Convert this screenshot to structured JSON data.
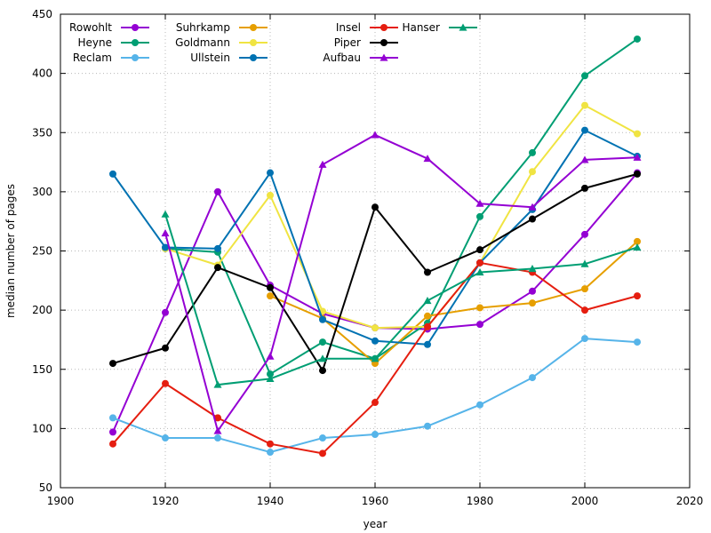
{
  "chart_data": {
    "type": "line",
    "title": "",
    "xlabel": "year",
    "ylabel": "median number of pages",
    "xlim": [
      1900,
      2020
    ],
    "ylim": [
      50,
      450
    ],
    "xticks": [
      1900,
      1920,
      1940,
      1960,
      1980,
      2000,
      2020
    ],
    "yticks": [
      50,
      100,
      150,
      200,
      250,
      300,
      350,
      400,
      450
    ],
    "grid": true,
    "legend_position": "top-left",
    "series": [
      {
        "name": "Rowohlt",
        "color": "#9400d3",
        "marker": "circle",
        "x": [
          1910,
          1920,
          1930,
          1940,
          1950,
          1960,
          1970,
          1980,
          1990,
          2000,
          2010
        ],
        "y": [
          97,
          198,
          300,
          221,
          197,
          185,
          184,
          188,
          216,
          264,
          316
        ]
      },
      {
        "name": "Heyne",
        "color": "#009e73",
        "marker": "circle",
        "x": [
          1920,
          1930,
          1940,
          1950,
          1960,
          1970,
          1980,
          1990,
          2000,
          2010
        ],
        "y": [
          252,
          249,
          146,
          173,
          159,
          189,
          279,
          333,
          398,
          429
        ]
      },
      {
        "name": "Reclam",
        "color": "#56b4e9",
        "marker": "circle",
        "x": [
          1910,
          1920,
          1930,
          1940,
          1950,
          1960,
          1970,
          1980,
          1990,
          2000,
          2010
        ],
        "y": [
          109,
          92,
          92,
          80,
          92,
          95,
          102,
          120,
          143,
          176,
          173
        ]
      },
      {
        "name": "Suhrkamp",
        "color": "#e69f00",
        "marker": "circle",
        "x": [
          1940,
          1950,
          1960,
          1970,
          1980,
          1990,
          2000,
          2010
        ],
        "y": [
          212,
          193,
          155,
          195,
          202,
          206,
          218,
          258
        ]
      },
      {
        "name": "Goldmann",
        "color": "#f0e442",
        "marker": "circle",
        "x": [
          1920,
          1930,
          1940,
          1950,
          1960,
          1970,
          1980,
          1990,
          2000,
          2010
        ],
        "y": [
          252,
          238,
          297,
          199,
          185,
          186,
          240,
          317,
          373,
          349
        ]
      },
      {
        "name": "Ullstein",
        "color": "#0072b2",
        "marker": "circle",
        "x": [
          1910,
          1920,
          1930,
          1940,
          1950,
          1960,
          1970,
          1980,
          1990,
          2000,
          2010
        ],
        "y": [
          315,
          253,
          252,
          316,
          192,
          174,
          171,
          240,
          285,
          352,
          330
        ]
      },
      {
        "name": "Insel",
        "color": "#e51e10",
        "marker": "circle",
        "x": [
          1910,
          1920,
          1930,
          1940,
          1950,
          1960,
          1970,
          1980,
          1990,
          2000,
          2010
        ],
        "y": [
          87,
          138,
          109,
          87,
          79,
          122,
          186,
          240,
          232,
          200,
          212
        ]
      },
      {
        "name": "Piper",
        "color": "#000000",
        "marker": "circle",
        "x": [
          1910,
          1920,
          1930,
          1940,
          1950,
          1960,
          1970,
          1980,
          1990,
          2000,
          2010
        ],
        "y": [
          155,
          168,
          236,
          219,
          149,
          287,
          232,
          251,
          277,
          303,
          315
        ]
      },
      {
        "name": "Aufbau",
        "color": "#9400d3",
        "marker": "triangle",
        "x": [
          1920,
          1930,
          1940,
          1950,
          1960,
          1970,
          1980,
          1990,
          2000,
          2010
        ],
        "y": [
          265,
          98,
          161,
          323,
          348,
          328,
          290,
          287,
          327,
          329
        ]
      },
      {
        "name": "Hanser",
        "color": "#009e73",
        "marker": "triangle",
        "x": [
          1920,
          1930,
          1940,
          1950,
          1960,
          1970,
          1980,
          1990,
          2000,
          2010
        ],
        "y": [
          281,
          137,
          142,
          159,
          159,
          208,
          232,
          235,
          239,
          253
        ]
      }
    ]
  }
}
